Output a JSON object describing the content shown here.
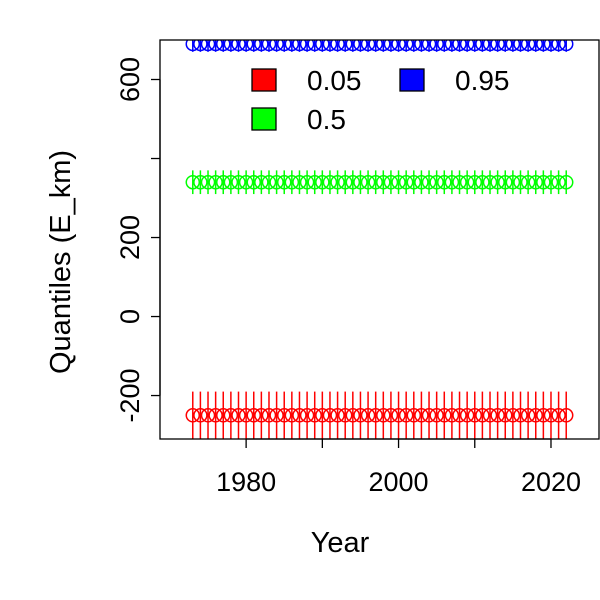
{
  "chart_data": {
    "type": "scatter",
    "title": "",
    "xlabel": "Year",
    "ylabel": "Quantiles (E_km)",
    "xlim": [
      1968.7,
      2026.3
    ],
    "ylim": [
      -310,
      700
    ],
    "x_ticks": [
      1980,
      2000,
      2020
    ],
    "x_tick_labels": [
      "1980",
      "2000",
      "2020"
    ],
    "y_ticks": [
      -200,
      0,
      200,
      600
    ],
    "y_tick_labels": [
      "-200",
      "0",
      "200",
      "600"
    ],
    "y_minor_ticks": [
      400
    ],
    "x": [
      1973,
      1974,
      1975,
      1976,
      1977,
      1978,
      1979,
      1980,
      1981,
      1982,
      1983,
      1984,
      1985,
      1986,
      1987,
      1988,
      1989,
      1990,
      1991,
      1992,
      1993,
      1994,
      1995,
      1996,
      1997,
      1998,
      1999,
      2000,
      2001,
      2002,
      2003,
      2004,
      2005,
      2006,
      2007,
      2008,
      2009,
      2010,
      2011,
      2012,
      2013,
      2014,
      2015,
      2016,
      2017,
      2018,
      2019,
      2020,
      2021,
      2022
    ],
    "series": [
      {
        "name": "0.05",
        "color": "#ff0000",
        "value": -250,
        "marker": "circle",
        "error_bars": true,
        "errbar_low": -310,
        "errbar_high": -190
      },
      {
        "name": "0.5",
        "color": "#00ff00",
        "value": 340,
        "marker": "circle",
        "error_bars": true,
        "errbar_low": 310,
        "errbar_high": 370
      },
      {
        "name": "0.95",
        "color": "#0000ff",
        "value": 690,
        "marker": "circle",
        "error_bars": true,
        "errbar_low": 670,
        "errbar_high": 710
      }
    ],
    "legend": {
      "placement": "top",
      "entries": [
        {
          "label": "0.05",
          "color": "#ff0000"
        },
        {
          "label": "0.95",
          "color": "#0000ff"
        },
        {
          "label": "0.5",
          "color": "#00ff00"
        }
      ]
    },
    "grid": false
  }
}
